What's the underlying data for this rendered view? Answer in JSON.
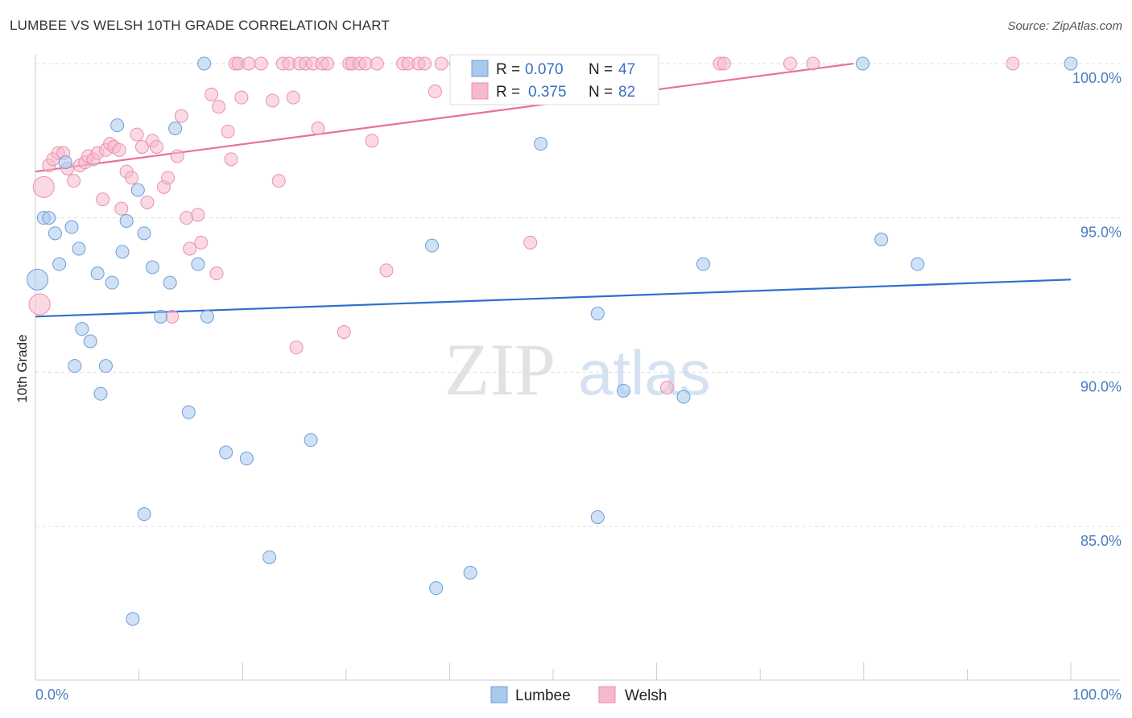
{
  "title": "LUMBEE VS WELSH 10TH GRADE CORRELATION CHART",
  "source": "Source: ZipAtlas.com",
  "watermark": {
    "zip": "ZIP",
    "atlas": "atlas"
  },
  "colors": {
    "lumbee_fill": "#a9c8ee",
    "lumbee_stroke": "#6c9fd8",
    "lumbee_line": "#2f6fcc",
    "welsh_fill": "#f6b9cc",
    "welsh_stroke": "#ec8fae",
    "welsh_line": "#e8709a",
    "tick_text": "#4a7cc0",
    "grid": "#dddddd"
  },
  "legend": {
    "lumbee": {
      "r_label": "R =",
      "r_value": "0.070",
      "n_label": "N =",
      "n_value": "47"
    },
    "welsh": {
      "r_label": "R =",
      "r_value": "0.375",
      "n_label": "N =",
      "n_value": "82"
    }
  },
  "chart_data": {
    "type": "scatter",
    "title": "LUMBEE VS WELSH 10TH GRADE CORRELATION CHART",
    "xlabel": "",
    "ylabel": "10th Grade",
    "xlim": [
      0,
      100
    ],
    "ylim": [
      80.5,
      100.9
    ],
    "x_tick_labels": [
      "0.0%",
      "100.0%"
    ],
    "y_ticks": [
      85,
      90,
      95,
      100
    ],
    "y_tick_labels": [
      "85.0%",
      "90.0%",
      "95.0%",
      "100.0%"
    ],
    "grid": true,
    "legend_position": "top-center",
    "series": [
      {
        "name": "Lumbee",
        "r": 0.07,
        "n": 47,
        "trend": {
          "x": [
            0,
            100
          ],
          "y": [
            91.8,
            93.0
          ]
        },
        "points": [
          {
            "x": 0.2,
            "y": 93.0,
            "big": true
          },
          {
            "x": 0.8,
            "y": 95.0
          },
          {
            "x": 1.3,
            "y": 95.0
          },
          {
            "x": 1.9,
            "y": 94.5
          },
          {
            "x": 2.3,
            "y": 93.5
          },
          {
            "x": 2.9,
            "y": 96.8
          },
          {
            "x": 3.5,
            "y": 94.7
          },
          {
            "x": 3.8,
            "y": 90.2
          },
          {
            "x": 4.5,
            "y": 91.4
          },
          {
            "x": 5.3,
            "y": 91.0
          },
          {
            "x": 4.2,
            "y": 94.0
          },
          {
            "x": 6.0,
            "y": 93.2
          },
          {
            "x": 6.3,
            "y": 89.3
          },
          {
            "x": 6.8,
            "y": 90.2
          },
          {
            "x": 7.4,
            "y": 92.9
          },
          {
            "x": 7.9,
            "y": 98.0
          },
          {
            "x": 8.4,
            "y": 93.9
          },
          {
            "x": 8.8,
            "y": 94.9
          },
          {
            "x": 9.4,
            "y": 82.0
          },
          {
            "x": 9.9,
            "y": 95.9
          },
          {
            "x": 10.5,
            "y": 85.4
          },
          {
            "x": 10.5,
            "y": 94.5
          },
          {
            "x": 11.3,
            "y": 93.4
          },
          {
            "x": 12.1,
            "y": 91.8
          },
          {
            "x": 13.0,
            "y": 92.9
          },
          {
            "x": 13.5,
            "y": 97.9
          },
          {
            "x": 14.8,
            "y": 88.7
          },
          {
            "x": 15.7,
            "y": 93.5
          },
          {
            "x": 16.3,
            "y": 100.0
          },
          {
            "x": 16.6,
            "y": 91.8
          },
          {
            "x": 18.4,
            "y": 87.4
          },
          {
            "x": 20.4,
            "y": 87.2
          },
          {
            "x": 22.6,
            "y": 84.0
          },
          {
            "x": 26.6,
            "y": 87.8
          },
          {
            "x": 38.3,
            "y": 94.1
          },
          {
            "x": 38.7,
            "y": 83.0
          },
          {
            "x": 42.0,
            "y": 83.5
          },
          {
            "x": 48.8,
            "y": 97.4
          },
          {
            "x": 54.3,
            "y": 91.9
          },
          {
            "x": 54.3,
            "y": 85.3
          },
          {
            "x": 56.8,
            "y": 89.4
          },
          {
            "x": 62.6,
            "y": 89.2
          },
          {
            "x": 64.5,
            "y": 93.5
          },
          {
            "x": 79.9,
            "y": 100.0
          },
          {
            "x": 81.7,
            "y": 94.3
          },
          {
            "x": 85.2,
            "y": 93.5
          },
          {
            "x": 100.0,
            "y": 100.0
          }
        ]
      },
      {
        "name": "Welsh",
        "r": 0.375,
        "n": 82,
        "trend": {
          "x": [
            0,
            79
          ],
          "y": [
            96.5,
            100.0
          ]
        },
        "points": [
          {
            "x": 0.8,
            "y": 96.0,
            "big": true
          },
          {
            "x": 0.4,
            "y": 92.2,
            "big": true
          },
          {
            "x": 1.3,
            "y": 96.7
          },
          {
            "x": 1.7,
            "y": 96.9
          },
          {
            "x": 2.2,
            "y": 97.1
          },
          {
            "x": 2.7,
            "y": 97.1
          },
          {
            "x": 3.1,
            "y": 96.6
          },
          {
            "x": 3.7,
            "y": 96.2
          },
          {
            "x": 4.3,
            "y": 96.7
          },
          {
            "x": 4.8,
            "y": 96.8
          },
          {
            "x": 5.1,
            "y": 97.0
          },
          {
            "x": 5.6,
            "y": 96.9
          },
          {
            "x": 6.0,
            "y": 97.1
          },
          {
            "x": 6.5,
            "y": 95.6
          },
          {
            "x": 6.8,
            "y": 97.2
          },
          {
            "x": 7.2,
            "y": 97.4
          },
          {
            "x": 7.6,
            "y": 97.3
          },
          {
            "x": 8.1,
            "y": 97.2
          },
          {
            "x": 8.3,
            "y": 95.3
          },
          {
            "x": 8.8,
            "y": 96.5
          },
          {
            "x": 9.3,
            "y": 96.3
          },
          {
            "x": 9.8,
            "y": 97.7
          },
          {
            "x": 10.3,
            "y": 97.3
          },
          {
            "x": 10.8,
            "y": 95.5
          },
          {
            "x": 11.3,
            "y": 97.5
          },
          {
            "x": 11.7,
            "y": 97.3
          },
          {
            "x": 12.4,
            "y": 96.0
          },
          {
            "x": 12.8,
            "y": 96.3
          },
          {
            "x": 13.2,
            "y": 91.8
          },
          {
            "x": 13.7,
            "y": 97.0
          },
          {
            "x": 14.1,
            "y": 98.3
          },
          {
            "x": 14.6,
            "y": 95.0
          },
          {
            "x": 14.9,
            "y": 94.0
          },
          {
            "x": 15.7,
            "y": 95.1
          },
          {
            "x": 16.0,
            "y": 94.2
          },
          {
            "x": 17.0,
            "y": 99.0
          },
          {
            "x": 17.5,
            "y": 93.2
          },
          {
            "x": 17.7,
            "y": 98.6
          },
          {
            "x": 18.6,
            "y": 97.8
          },
          {
            "x": 18.9,
            "y": 96.9
          },
          {
            "x": 19.3,
            "y": 100.0
          },
          {
            "x": 19.6,
            "y": 100.0
          },
          {
            "x": 19.9,
            "y": 98.9
          },
          {
            "x": 20.6,
            "y": 100.0
          },
          {
            "x": 21.8,
            "y": 100.0
          },
          {
            "x": 22.9,
            "y": 98.8
          },
          {
            "x": 23.5,
            "y": 96.2
          },
          {
            "x": 23.9,
            "y": 100.0
          },
          {
            "x": 24.5,
            "y": 100.0
          },
          {
            "x": 24.9,
            "y": 98.9
          },
          {
            "x": 25.2,
            "y": 90.8
          },
          {
            "x": 25.5,
            "y": 100.0
          },
          {
            "x": 26.1,
            "y": 100.0
          },
          {
            "x": 26.8,
            "y": 100.0
          },
          {
            "x": 27.3,
            "y": 97.9
          },
          {
            "x": 27.7,
            "y": 100.0
          },
          {
            "x": 28.2,
            "y": 100.0
          },
          {
            "x": 29.8,
            "y": 91.3
          },
          {
            "x": 30.3,
            "y": 100.0
          },
          {
            "x": 30.6,
            "y": 100.0
          },
          {
            "x": 31.3,
            "y": 100.0
          },
          {
            "x": 31.9,
            "y": 100.0
          },
          {
            "x": 32.5,
            "y": 97.5
          },
          {
            "x": 33.0,
            "y": 100.0
          },
          {
            "x": 33.9,
            "y": 93.3
          },
          {
            "x": 35.5,
            "y": 100.0
          },
          {
            "x": 36.0,
            "y": 100.0
          },
          {
            "x": 37.0,
            "y": 100.0
          },
          {
            "x": 37.6,
            "y": 100.0
          },
          {
            "x": 38.6,
            "y": 99.1
          },
          {
            "x": 39.2,
            "y": 100.0
          },
          {
            "x": 40.6,
            "y": 100.0
          },
          {
            "x": 42.3,
            "y": 100.0
          },
          {
            "x": 42.8,
            "y": 100.0
          },
          {
            "x": 45.6,
            "y": 100.0
          },
          {
            "x": 47.8,
            "y": 94.2
          },
          {
            "x": 61.0,
            "y": 89.5
          },
          {
            "x": 66.1,
            "y": 100.0
          },
          {
            "x": 66.5,
            "y": 100.0
          },
          {
            "x": 72.9,
            "y": 100.0
          },
          {
            "x": 75.1,
            "y": 100.0
          },
          {
            "x": 94.4,
            "y": 100.0
          }
        ]
      }
    ],
    "bottom_legend": [
      "Lumbee",
      "Welsh"
    ]
  }
}
